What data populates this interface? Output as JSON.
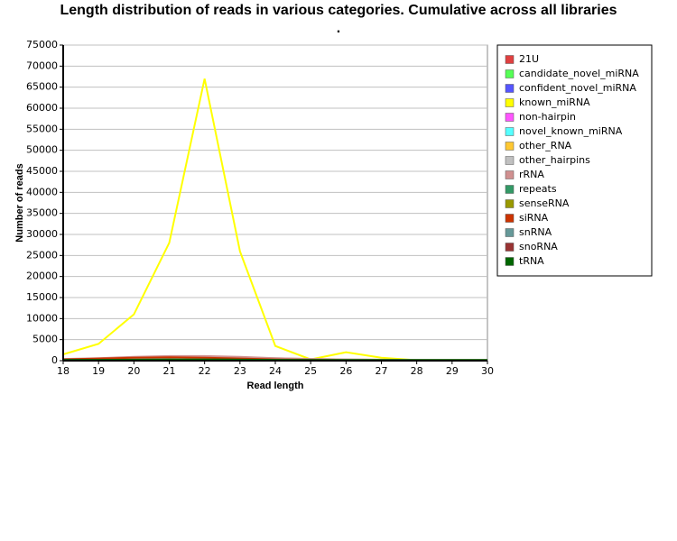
{
  "chart_data": {
    "type": "line",
    "title": "Length distribution of reads in various categories. Cumulative across all libraries",
    "subtitle": ".",
    "x_label": "Read length",
    "y_label": "Number of reads",
    "x": [
      18,
      19,
      20,
      21,
      22,
      23,
      24,
      25,
      26,
      27,
      28,
      29,
      30
    ],
    "xlim": [
      18,
      30
    ],
    "xticks": [
      18,
      19,
      20,
      21,
      22,
      23,
      24,
      25,
      26,
      27,
      28,
      29,
      30
    ],
    "ylim": [
      0,
      75000
    ],
    "yticks": [
      0,
      5000,
      10000,
      15000,
      20000,
      25000,
      30000,
      35000,
      40000,
      45000,
      50000,
      55000,
      60000,
      65000,
      70000,
      75000
    ],
    "grid": true,
    "legend": "right",
    "series": [
      {
        "name": "21U",
        "color": "#e04040",
        "values": [
          300,
          500,
          800,
          1000,
          1000,
          700,
          400,
          200,
          100,
          100,
          50,
          50,
          50
        ]
      },
      {
        "name": "candidate_novel_miRNA",
        "color": "#55ff55",
        "values": [
          0,
          0,
          10,
          20,
          50,
          10,
          0,
          0,
          0,
          0,
          0,
          0,
          0
        ]
      },
      {
        "name": "confident_novel_miRNA",
        "color": "#5555ff",
        "values": [
          0,
          10,
          20,
          50,
          80,
          30,
          10,
          0,
          0,
          0,
          0,
          0,
          0
        ]
      },
      {
        "name": "known_miRNA",
        "color": "#ffff00",
        "values": [
          1500,
          4000,
          11000,
          28000,
          67000,
          26000,
          3500,
          300,
          2000,
          700,
          100,
          100,
          100
        ]
      },
      {
        "name": "non-hairpin",
        "color": "#ff55ff",
        "values": [
          50,
          50,
          100,
          100,
          100,
          50,
          50,
          20,
          20,
          10,
          10,
          10,
          10
        ]
      },
      {
        "name": "novel_known_miRNA",
        "color": "#55ffff",
        "values": [
          0,
          0,
          10,
          20,
          40,
          10,
          0,
          0,
          0,
          0,
          0,
          0,
          0
        ]
      },
      {
        "name": "other_RNA",
        "color": "#ffc832",
        "values": [
          100,
          100,
          150,
          200,
          200,
          150,
          100,
          80,
          60,
          50,
          50,
          50,
          50
        ]
      },
      {
        "name": "other_hairpins",
        "color": "#c0c0c0",
        "values": [
          300,
          400,
          500,
          700,
          900,
          800,
          600,
          400,
          300,
          200,
          200,
          150,
          150
        ]
      },
      {
        "name": "rRNA",
        "color": "#d09090",
        "values": [
          400,
          600,
          900,
          1100,
          1100,
          900,
          600,
          400,
          300,
          250,
          200,
          200,
          200
        ]
      },
      {
        "name": "repeats",
        "color": "#339966",
        "values": [
          100,
          100,
          120,
          150,
          150,
          120,
          100,
          80,
          60,
          50,
          50,
          50,
          50
        ]
      },
      {
        "name": "senseRNA",
        "color": "#999900",
        "values": [
          20,
          20,
          30,
          40,
          40,
          30,
          20,
          20,
          10,
          10,
          10,
          10,
          10
        ]
      },
      {
        "name": "siRNA",
        "color": "#cc3300",
        "values": [
          300,
          500,
          700,
          800,
          700,
          500,
          300,
          200,
          100,
          80,
          50,
          50,
          50
        ]
      },
      {
        "name": "snRNA",
        "color": "#669999",
        "values": [
          50,
          50,
          60,
          80,
          80,
          60,
          50,
          40,
          30,
          20,
          20,
          20,
          20
        ]
      },
      {
        "name": "snoRNA",
        "color": "#993333",
        "values": [
          50,
          60,
          80,
          100,
          100,
          80,
          60,
          40,
          30,
          20,
          20,
          20,
          20
        ]
      },
      {
        "name": "tRNA",
        "color": "#006600",
        "values": [
          200,
          200,
          250,
          300,
          300,
          250,
          200,
          150,
          150,
          150,
          150,
          150,
          150
        ]
      }
    ]
  }
}
